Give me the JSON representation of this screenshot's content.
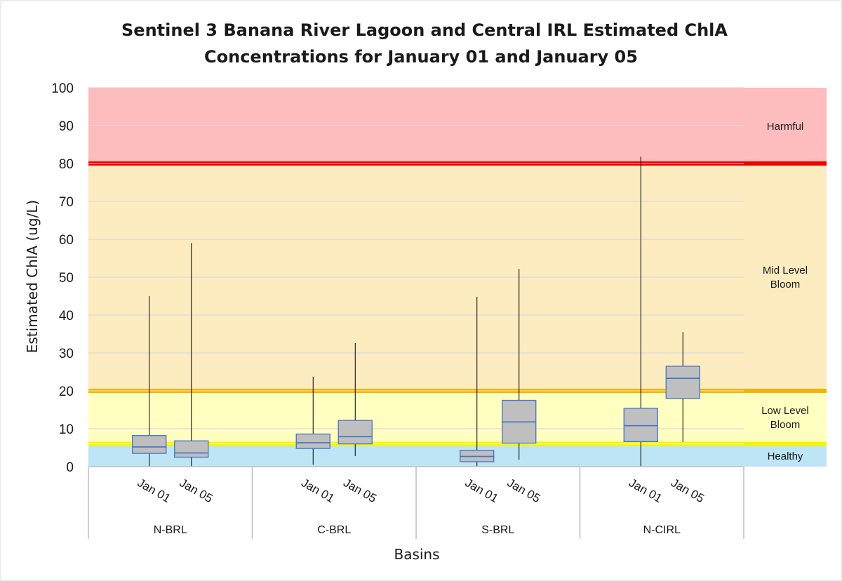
{
  "chart_data": {
    "type": "box",
    "title_line1": "Sentinel 3 Banana River Lagoon and Central IRL Estimated ChlA",
    "title_line2": "Concentrations for January 01 and January 05",
    "xlabel": "Basins",
    "ylabel": "Estimated ChlA (ug/L)",
    "ylim": [
      0,
      100
    ],
    "yticks": [
      "0",
      "10",
      "20",
      "30",
      "40",
      "50",
      "60",
      "70",
      "80",
      "90",
      "100"
    ],
    "grid": true,
    "zones": [
      {
        "label_lines": [
          "Healthy"
        ],
        "from": 0,
        "to": 6,
        "color": "#bde5f5"
      },
      {
        "label_lines": [
          "Low Level",
          "Bloom"
        ],
        "from": 6,
        "to": 20,
        "color": "#ffffc2"
      },
      {
        "label_lines": [
          "Mid Level",
          "Bloom"
        ],
        "from": 20,
        "to": 80,
        "color": "#fdecc0"
      },
      {
        "label_lines": [
          "Harmful"
        ],
        "from": 80,
        "to": 100,
        "color": "#fdbcbd"
      }
    ],
    "thresholds": [
      {
        "value": 6,
        "color": "#f5f500"
      },
      {
        "value": 20,
        "color": "#f5b400"
      },
      {
        "value": 80,
        "color": "#f20000"
      }
    ],
    "basins": [
      "N-BRL",
      "C-BRL",
      "S-BRL",
      "N-CIRL"
    ],
    "series_labels": [
      "Jan 01",
      "Jan 05"
    ],
    "boxes": [
      {
        "basin": "N-BRL",
        "date": "Jan 01",
        "min": 0,
        "q1": 3.5,
        "median": 5.2,
        "q3": 8.2,
        "max": 45
      },
      {
        "basin": "N-BRL",
        "date": "Jan 05",
        "min": 0,
        "q1": 2.5,
        "median": 3.6,
        "q3": 6.8,
        "max": 59
      },
      {
        "basin": "C-BRL",
        "date": "Jan 01",
        "min": 0.5,
        "q1": 4.8,
        "median": 6.3,
        "q3": 8.6,
        "max": 23.7
      },
      {
        "basin": "C-BRL",
        "date": "Jan 05",
        "min": 2.8,
        "q1": 6,
        "median": 7.9,
        "q3": 12.2,
        "max": 32.6
      },
      {
        "basin": "S-BRL",
        "date": "Jan 01",
        "min": 0,
        "q1": 1.3,
        "median": 2.7,
        "q3": 4.3,
        "max": 44.8
      },
      {
        "basin": "S-BRL",
        "date": "Jan 05",
        "min": 1.8,
        "q1": 6.2,
        "median": 11.8,
        "q3": 17.5,
        "max": 52.2
      },
      {
        "basin": "N-CIRL",
        "date": "Jan 01",
        "min": 0,
        "q1": 6.6,
        "median": 10.8,
        "q3": 15.4,
        "max": 81.8
      },
      {
        "basin": "N-CIRL",
        "date": "Jan 05",
        "min": 6.5,
        "q1": 18,
        "median": 23.3,
        "q3": 26.5,
        "max": 35.5
      }
    ],
    "colors": {
      "box_fill": "#bfbfbf",
      "box_stroke": "#4472c4",
      "whisker": "#000000",
      "grid": "#d9d9d9",
      "axis": "#bfbfbf"
    }
  }
}
